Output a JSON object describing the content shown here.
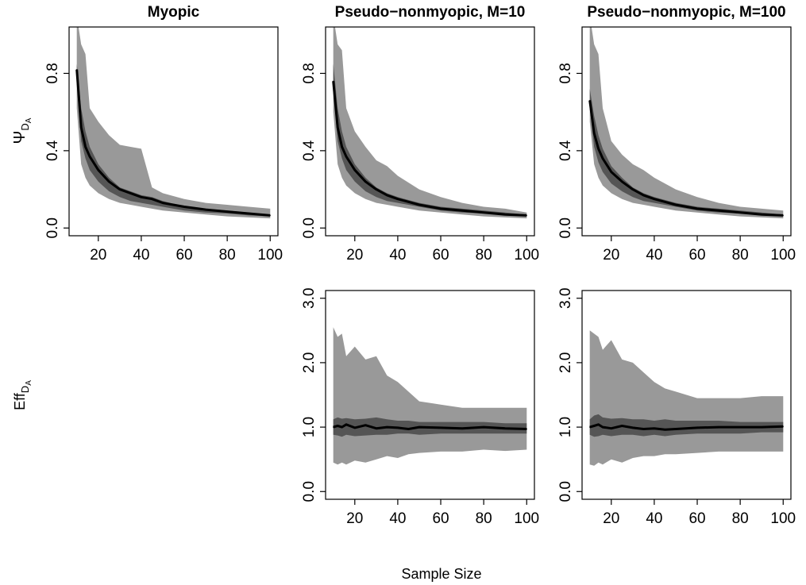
{
  "figure": {
    "xlabel": "Sample Size",
    "ylabel_top_base": "Ψ",
    "ylabel_top_sub": "D",
    "ylabel_top_subsub": "A",
    "ylabel_bottom_base": "Eff",
    "ylabel_bottom_sub": "D",
    "ylabel_bottom_subsub": "A"
  },
  "chart_data": [
    {
      "id": "psi_myopic",
      "type": "area",
      "title": "Myopic",
      "xlim": [
        10,
        100
      ],
      "ylim": [
        0,
        1.0
      ],
      "xticks": [
        20,
        40,
        60,
        80,
        100
      ],
      "yticks": [
        0.0,
        0.4,
        0.8
      ],
      "ytick_labels": [
        "0.0",
        "0.4",
        "0.8"
      ],
      "x": [
        10,
        12,
        14,
        16,
        20,
        25,
        30,
        35,
        40,
        45,
        50,
        60,
        70,
        80,
        90,
        100
      ],
      "series": [
        {
          "role": "outer_band",
          "color": "#999999",
          "lower": [
            0.62,
            0.33,
            0.26,
            0.22,
            0.18,
            0.15,
            0.13,
            0.12,
            0.11,
            0.1,
            0.09,
            0.08,
            0.07,
            0.06,
            0.055,
            0.05
          ],
          "upper": [
            1.1,
            0.95,
            0.9,
            0.62,
            0.55,
            0.48,
            0.43,
            0.42,
            0.41,
            0.21,
            0.18,
            0.15,
            0.13,
            0.12,
            0.11,
            0.1
          ]
        },
        {
          "role": "inner_band",
          "color": "#555555",
          "lower": [
            0.75,
            0.45,
            0.36,
            0.3,
            0.24,
            0.19,
            0.16,
            0.14,
            0.13,
            0.12,
            0.11,
            0.09,
            0.08,
            0.075,
            0.065,
            0.06
          ],
          "upper": [
            0.85,
            0.62,
            0.5,
            0.42,
            0.33,
            0.26,
            0.21,
            0.19,
            0.17,
            0.16,
            0.14,
            0.11,
            0.1,
            0.09,
            0.08,
            0.07
          ]
        },
        {
          "role": "median",
          "color": "#000000",
          "values": [
            0.82,
            0.52,
            0.42,
            0.37,
            0.3,
            0.24,
            0.2,
            0.18,
            0.16,
            0.15,
            0.13,
            0.11,
            0.095,
            0.085,
            0.075,
            0.065
          ]
        }
      ]
    },
    {
      "id": "psi_pnm10",
      "type": "area",
      "title": "Pseudo−nonmyopic, M=10",
      "xlim": [
        10,
        100
      ],
      "ylim": [
        0,
        1.0
      ],
      "xticks": [
        20,
        40,
        60,
        80,
        100
      ],
      "yticks": [
        0.0,
        0.4,
        0.8
      ],
      "ytick_labels": [
        "0.0",
        "0.4",
        "0.8"
      ],
      "x": [
        10,
        12,
        14,
        16,
        20,
        25,
        30,
        35,
        40,
        50,
        60,
        70,
        80,
        90,
        100
      ],
      "series": [
        {
          "role": "outer_band",
          "color": "#999999",
          "lower": [
            0.6,
            0.33,
            0.26,
            0.22,
            0.18,
            0.15,
            0.13,
            0.12,
            0.11,
            0.09,
            0.08,
            0.07,
            0.06,
            0.055,
            0.05
          ],
          "upper": [
            1.1,
            0.95,
            0.92,
            0.62,
            0.5,
            0.42,
            0.35,
            0.32,
            0.27,
            0.2,
            0.16,
            0.13,
            0.11,
            0.1,
            0.08
          ]
        },
        {
          "role": "inner_band",
          "color": "#555555",
          "lower": [
            0.72,
            0.45,
            0.36,
            0.3,
            0.24,
            0.19,
            0.16,
            0.14,
            0.13,
            0.11,
            0.09,
            0.08,
            0.075,
            0.065,
            0.06
          ],
          "upper": [
            0.85,
            0.62,
            0.5,
            0.42,
            0.33,
            0.26,
            0.21,
            0.18,
            0.16,
            0.13,
            0.11,
            0.1,
            0.09,
            0.08,
            0.07
          ]
        },
        {
          "role": "median",
          "color": "#000000",
          "values": [
            0.76,
            0.52,
            0.42,
            0.37,
            0.3,
            0.24,
            0.2,
            0.17,
            0.15,
            0.12,
            0.1,
            0.09,
            0.08,
            0.07,
            0.065
          ]
        }
      ]
    },
    {
      "id": "psi_pnm100",
      "type": "area",
      "title": "Pseudo−nonmyopic, M=100",
      "xlim": [
        10,
        100
      ],
      "ylim": [
        0,
        1.0
      ],
      "xticks": [
        20,
        40,
        60,
        80,
        100
      ],
      "yticks": [
        0.0,
        0.4,
        0.8
      ],
      "ytick_labels": [
        "0.0",
        "0.4",
        "0.8"
      ],
      "x": [
        10,
        12,
        14,
        16,
        20,
        25,
        30,
        35,
        40,
        50,
        60,
        70,
        80,
        90,
        100
      ],
      "series": [
        {
          "role": "outer_band",
          "color": "#999999",
          "lower": [
            0.55,
            0.33,
            0.26,
            0.22,
            0.18,
            0.15,
            0.13,
            0.12,
            0.11,
            0.09,
            0.08,
            0.07,
            0.06,
            0.055,
            0.05
          ],
          "upper": [
            1.1,
            0.95,
            0.9,
            0.62,
            0.45,
            0.38,
            0.33,
            0.3,
            0.26,
            0.2,
            0.16,
            0.13,
            0.11,
            0.1,
            0.09
          ]
        },
        {
          "role": "inner_band",
          "color": "#555555",
          "lower": [
            0.62,
            0.42,
            0.34,
            0.29,
            0.23,
            0.19,
            0.16,
            0.14,
            0.13,
            0.11,
            0.09,
            0.08,
            0.075,
            0.065,
            0.06
          ],
          "upper": [
            0.72,
            0.58,
            0.48,
            0.41,
            0.32,
            0.26,
            0.21,
            0.18,
            0.16,
            0.13,
            0.11,
            0.1,
            0.09,
            0.08,
            0.07
          ]
        },
        {
          "role": "median",
          "color": "#000000",
          "values": [
            0.66,
            0.49,
            0.41,
            0.36,
            0.29,
            0.24,
            0.2,
            0.17,
            0.15,
            0.12,
            0.1,
            0.09,
            0.08,
            0.07,
            0.065
          ]
        }
      ]
    },
    {
      "id": "eff_pnm10",
      "type": "area",
      "title": "",
      "xlim": [
        10,
        100
      ],
      "ylim": [
        0,
        3.0
      ],
      "xticks": [
        20,
        40,
        60,
        80,
        100
      ],
      "yticks": [
        0.0,
        1.0,
        2.0,
        3.0
      ],
      "ytick_labels": [
        "0.0",
        "1.0",
        "2.0",
        "3.0"
      ],
      "x": [
        10,
        12,
        14,
        16,
        20,
        25,
        30,
        35,
        40,
        45,
        50,
        60,
        70,
        80,
        90,
        100
      ],
      "series": [
        {
          "role": "outer_band",
          "color": "#999999",
          "lower": [
            0.45,
            0.42,
            0.45,
            0.42,
            0.48,
            0.45,
            0.5,
            0.55,
            0.52,
            0.58,
            0.6,
            0.62,
            0.62,
            0.65,
            0.63,
            0.65
          ],
          "upper": [
            2.55,
            2.4,
            2.45,
            2.1,
            2.25,
            2.05,
            2.1,
            1.8,
            1.7,
            1.55,
            1.4,
            1.35,
            1.3,
            1.3,
            1.3,
            1.3
          ]
        },
        {
          "role": "inner_band",
          "color": "#555555",
          "lower": [
            0.88,
            0.87,
            0.85,
            0.88,
            0.86,
            0.87,
            0.88,
            0.88,
            0.9,
            0.9,
            0.88,
            0.9,
            0.9,
            0.9,
            0.9,
            0.9
          ],
          "upper": [
            1.12,
            1.15,
            1.13,
            1.14,
            1.12,
            1.13,
            1.15,
            1.12,
            1.1,
            1.1,
            1.08,
            1.08,
            1.08,
            1.08,
            1.06,
            1.06
          ]
        },
        {
          "role": "median",
          "color": "#000000",
          "values": [
            1.0,
            1.02,
            1.0,
            1.04,
            0.99,
            1.03,
            0.98,
            1.0,
            0.99,
            0.97,
            1.0,
            0.99,
            0.98,
            1.0,
            0.98,
            0.97
          ]
        }
      ]
    },
    {
      "id": "eff_pnm100",
      "type": "area",
      "title": "",
      "xlim": [
        10,
        100
      ],
      "ylim": [
        0,
        3.0
      ],
      "xticks": [
        20,
        40,
        60,
        80,
        100
      ],
      "yticks": [
        0.0,
        1.0,
        2.0,
        3.0
      ],
      "ytick_labels": [
        "0.0",
        "1.0",
        "2.0",
        "3.0"
      ],
      "x": [
        10,
        12,
        14,
        16,
        20,
        25,
        30,
        35,
        40,
        45,
        50,
        60,
        70,
        80,
        90,
        100
      ],
      "series": [
        {
          "role": "outer_band",
          "color": "#999999",
          "lower": [
            0.42,
            0.4,
            0.45,
            0.42,
            0.5,
            0.45,
            0.52,
            0.55,
            0.55,
            0.58,
            0.58,
            0.6,
            0.62,
            0.62,
            0.62,
            0.62
          ],
          "upper": [
            2.5,
            2.45,
            2.4,
            2.2,
            2.35,
            2.05,
            2.0,
            1.85,
            1.7,
            1.6,
            1.55,
            1.45,
            1.45,
            1.45,
            1.48,
            1.48
          ]
        },
        {
          "role": "inner_band",
          "color": "#555555",
          "lower": [
            0.88,
            0.85,
            0.86,
            0.88,
            0.86,
            0.88,
            0.88,
            0.86,
            0.88,
            0.86,
            0.88,
            0.9,
            0.9,
            0.9,
            0.92,
            0.92
          ],
          "upper": [
            1.12,
            1.18,
            1.2,
            1.15,
            1.13,
            1.14,
            1.12,
            1.12,
            1.1,
            1.12,
            1.1,
            1.1,
            1.1,
            1.08,
            1.08,
            1.08
          ]
        },
        {
          "role": "median",
          "color": "#000000",
          "values": [
            1.0,
            1.02,
            1.04,
            1.0,
            0.98,
            1.02,
            0.99,
            0.97,
            0.98,
            0.96,
            0.97,
            0.99,
            1.0,
            1.0,
            1.0,
            1.01
          ]
        }
      ]
    }
  ]
}
